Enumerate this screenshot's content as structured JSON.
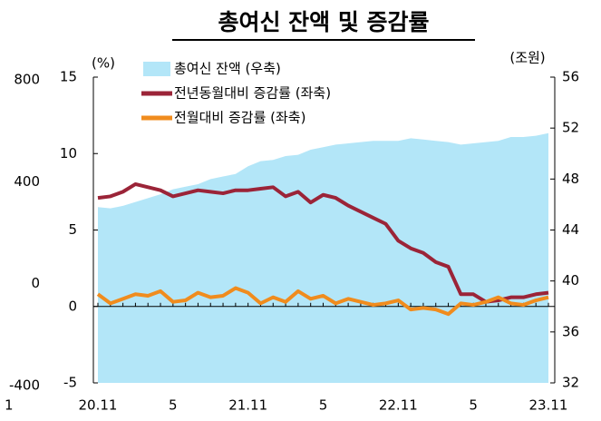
{
  "chart_data": {
    "type": "line",
    "title": "총여신 잔액 및 증감률",
    "y_unit": "(%)",
    "y2_unit": "(조원)",
    "x_edge_label": "1",
    "categories": [
      "20.11",
      null,
      null,
      null,
      null,
      null,
      "5",
      null,
      null,
      null,
      null,
      null,
      "21.11",
      null,
      null,
      null,
      null,
      null,
      "5",
      null,
      null,
      null,
      null,
      null,
      "22.11",
      null,
      null,
      null,
      null,
      null,
      "5",
      null,
      null,
      null,
      null,
      null,
      "23.11"
    ],
    "ylim": [
      -5,
      15
    ],
    "yticks": [
      -5,
      0,
      5,
      10,
      15
    ],
    "y2lim": [
      32,
      56
    ],
    "y2ticks": [
      32,
      36,
      40,
      44,
      48,
      52,
      56
    ],
    "y3lim": [
      -400,
      800
    ],
    "y3ticks": [
      -400,
      0,
      400,
      800
    ],
    "series": [
      {
        "name": "총여신 잔액 (우축)",
        "kind": "area",
        "axis": "y2",
        "color": "#b3e6f8",
        "values": [
          45.8,
          45.7,
          45.9,
          46.2,
          46.5,
          46.8,
          47.2,
          47.4,
          47.6,
          48.0,
          48.2,
          48.4,
          49.0,
          49.4,
          49.5,
          49.8,
          49.9,
          50.3,
          50.5,
          50.7,
          50.8,
          50.9,
          51.0,
          51.0,
          51.0,
          51.2,
          51.1,
          51.0,
          50.9,
          50.7,
          50.8,
          50.9,
          51.0,
          51.3,
          51.3,
          51.4,
          51.6
        ]
      },
      {
        "name": "전년동월대비 증감률 (좌축)",
        "kind": "line",
        "axis": "y",
        "color": "#9b2438",
        "values": [
          7.1,
          7.2,
          7.5,
          8.0,
          7.8,
          7.6,
          7.2,
          7.4,
          7.6,
          7.5,
          7.4,
          7.6,
          7.6,
          7.7,
          7.8,
          7.2,
          7.5,
          6.8,
          7.3,
          7.1,
          6.6,
          6.2,
          5.8,
          5.4,
          4.3,
          3.8,
          3.5,
          2.9,
          2.6,
          0.8,
          0.8,
          0.3,
          0.4,
          0.6,
          0.6,
          0.8,
          0.9
        ]
      },
      {
        "name": "전월대비 증감률 (좌축)",
        "kind": "line",
        "axis": "y",
        "color": "#f08c1e",
        "values": [
          0.8,
          0.2,
          0.5,
          0.8,
          0.7,
          1.0,
          0.3,
          0.4,
          0.9,
          0.6,
          0.7,
          1.2,
          0.9,
          0.2,
          0.6,
          0.3,
          1.0,
          0.5,
          0.7,
          0.2,
          0.5,
          0.3,
          0.1,
          0.2,
          0.4,
          -0.2,
          -0.1,
          -0.2,
          -0.5,
          0.2,
          0.1,
          0.3,
          0.6,
          0.2,
          0.1,
          0.4,
          0.6
        ]
      }
    ]
  }
}
